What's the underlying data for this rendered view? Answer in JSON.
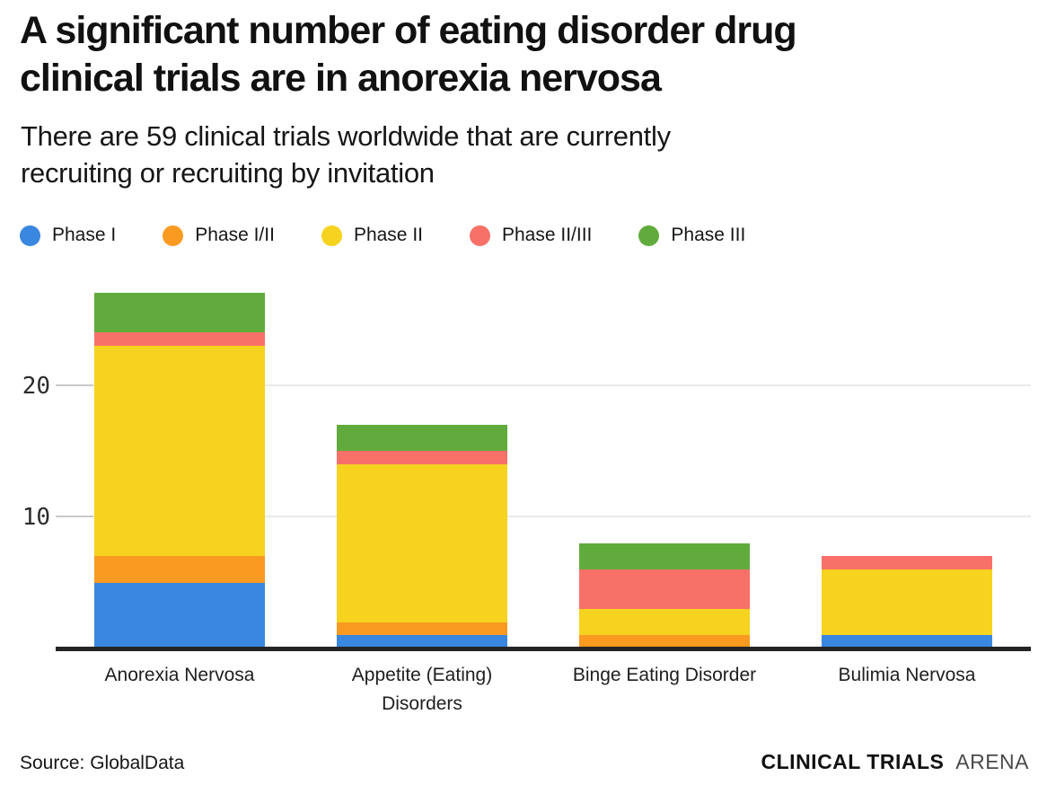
{
  "header": {
    "title": "A significant number of eating disorder drug\nclinical trials are in anorexia nervosa",
    "subtitle": "There are 59 clinical trials worldwide that are currently\nrecruiting or recruiting by invitation"
  },
  "chart_data": {
    "type": "bar",
    "stacked": true,
    "title": "A significant number of eating disorder drug clinical trials are in anorexia nervosa",
    "subtitle": "There are 59 clinical trials worldwide that are currently recruiting or recruiting by invitation",
    "categories": [
      "Anorexia Nervosa",
      "Appetite (Eating) Disorders",
      "Binge Eating Disorder",
      "Bulimia Nervosa"
    ],
    "series": [
      {
        "name": "Phase I",
        "color": "#3a87e0",
        "values": [
          5,
          1,
          0,
          1
        ]
      },
      {
        "name": "Phase I/II",
        "color": "#fb9a20",
        "values": [
          2,
          1,
          1,
          0
        ]
      },
      {
        "name": "Phase II",
        "color": "#f5d31f",
        "values": [
          16,
          12,
          2,
          5
        ]
      },
      {
        "name": "Phase II/III",
        "color": "#f87168",
        "values": [
          1,
          1,
          3,
          1
        ]
      },
      {
        "name": "Phase III",
        "color": "#61ab3d",
        "values": [
          3,
          2,
          2,
          0
        ]
      }
    ],
    "category_totals": [
      27,
      17,
      8,
      7
    ],
    "xlabel": "",
    "ylabel": "",
    "yticks": [
      10,
      20
    ],
    "ylim": [
      0,
      27
    ],
    "grid": true,
    "legend_position": "top"
  },
  "footer": {
    "source": "Source: GlobalData",
    "brand_bold": "CLINICAL TRIALS",
    "brand_light": "ARENA"
  }
}
